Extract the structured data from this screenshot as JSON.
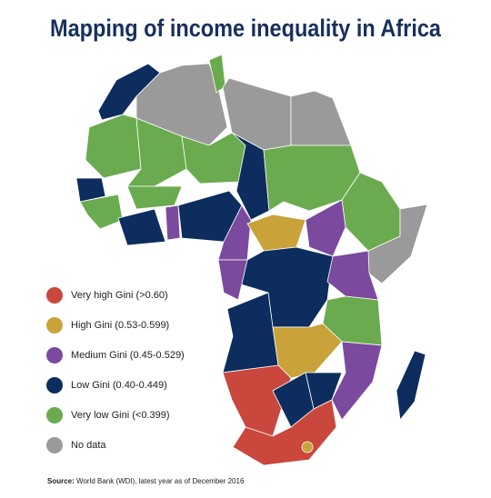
{
  "title": "Mapping of income inequality in Africa",
  "legend": [
    {
      "label": "Very high Gini (>0.60)",
      "color": "#c9473d"
    },
    {
      "label": "High Gini (0.53-0.599)",
      "color": "#c9a33a"
    },
    {
      "label": "Medium Gini (0.45-0.529)",
      "color": "#7b4a9e"
    },
    {
      "label": "Low Gini (0.40-0.449)",
      "color": "#0c2d5e"
    },
    {
      "label": "Very low Gini (<0.399)",
      "color": "#6aab4f"
    },
    {
      "label": "No data",
      "color": "#9a9a9a"
    }
  ],
  "source": {
    "label": "Source:",
    "text": "World Bank (WDI), latest year as of December 2016"
  }
}
